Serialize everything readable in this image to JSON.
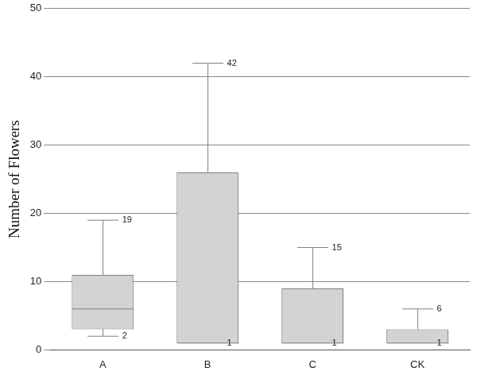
{
  "chart_data": {
    "type": "box",
    "y_label": "Number of Flowers",
    "categories": [
      "A",
      "B",
      "C",
      "CK"
    ],
    "min": [
      2,
      1,
      1,
      1
    ],
    "q1": [
      3,
      1,
      1,
      1
    ],
    "median": [
      6,
      1,
      1,
      1
    ],
    "q3": [
      11,
      26,
      9,
      3
    ],
    "max": [
      19,
      42,
      15,
      6
    ],
    "ylim": [
      0,
      50
    ],
    "yticks": [
      0,
      10,
      20,
      30,
      40,
      50
    ],
    "grid": true,
    "data_labels": true,
    "color": "#d3d3d3"
  }
}
